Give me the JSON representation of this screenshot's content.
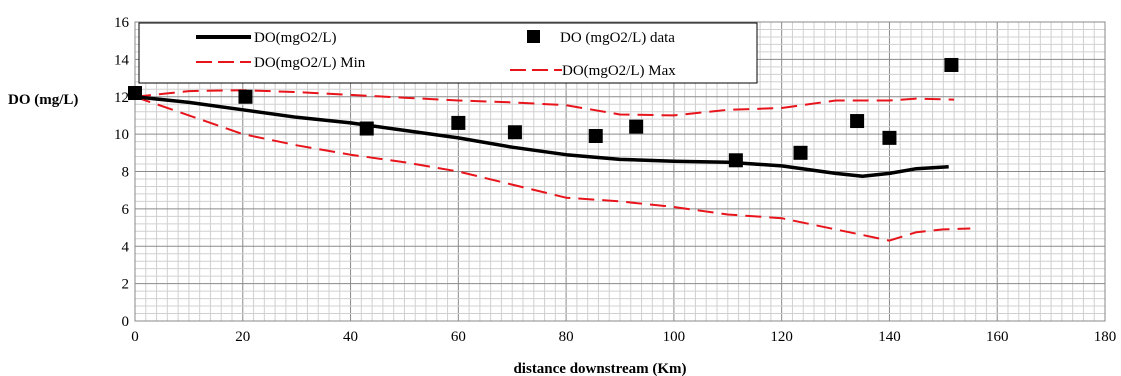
{
  "chart_data": {
    "type": "line",
    "title": "",
    "xlabel": "distance downstream (Km)",
    "ylabel": "DO (mg/L)",
    "xlim": [
      0,
      180
    ],
    "ylim": [
      0,
      16
    ],
    "x_ticks": [
      0,
      20,
      40,
      60,
      80,
      100,
      120,
      140,
      160,
      180
    ],
    "y_ticks": [
      0,
      2,
      4,
      6,
      8,
      10,
      12,
      14,
      16
    ],
    "grid": true,
    "legend_position": "top-left",
    "series": [
      {
        "name": "DO(mgO2/L)",
        "kind": "line",
        "style": "solid",
        "color": "#000000",
        "points": [
          [
            0,
            12.0
          ],
          [
            10,
            11.7
          ],
          [
            20,
            11.3
          ],
          [
            30,
            10.9
          ],
          [
            40,
            10.6
          ],
          [
            50,
            10.2
          ],
          [
            60,
            9.8
          ],
          [
            70,
            9.3
          ],
          [
            80,
            8.9
          ],
          [
            90,
            8.65
          ],
          [
            100,
            8.55
          ],
          [
            110,
            8.5
          ],
          [
            120,
            8.3
          ],
          [
            130,
            7.9
          ],
          [
            135,
            7.75
          ],
          [
            140,
            7.9
          ],
          [
            145,
            8.15
          ],
          [
            151,
            8.25
          ]
        ]
      },
      {
        "name": "DO (mgO2/L) data",
        "kind": "scatter",
        "marker": "square",
        "color": "#000000",
        "points": [
          [
            0,
            12.2
          ],
          [
            20.5,
            12.0
          ],
          [
            43,
            10.3
          ],
          [
            60,
            10.6
          ],
          [
            70.5,
            10.1
          ],
          [
            85.5,
            9.9
          ],
          [
            93,
            10.4
          ],
          [
            111.5,
            8.6
          ],
          [
            123.5,
            9.0
          ],
          [
            134,
            10.7
          ],
          [
            140,
            9.8
          ],
          [
            151.5,
            13.7
          ]
        ]
      },
      {
        "name": "DO(mgO2/L) Min",
        "kind": "line",
        "style": "dashed",
        "color": "#e8141b",
        "points": [
          [
            0,
            12.0
          ],
          [
            10,
            11.0
          ],
          [
            20,
            10.0
          ],
          [
            30,
            9.4
          ],
          [
            40,
            8.9
          ],
          [
            50,
            8.5
          ],
          [
            60,
            8.0
          ],
          [
            70,
            7.3
          ],
          [
            80,
            6.6
          ],
          [
            90,
            6.4
          ],
          [
            100,
            6.1
          ],
          [
            110,
            5.7
          ],
          [
            120,
            5.5
          ],
          [
            130,
            4.9
          ],
          [
            135,
            4.6
          ],
          [
            140,
            4.3
          ],
          [
            145,
            4.75
          ],
          [
            150,
            4.9
          ],
          [
            155,
            4.95
          ]
        ]
      },
      {
        "name": "DO(mgO2/L) Max",
        "kind": "line",
        "style": "dashed",
        "color": "#e8141b",
        "points": [
          [
            0,
            12.0
          ],
          [
            10,
            12.3
          ],
          [
            20,
            12.35
          ],
          [
            30,
            12.25
          ],
          [
            40,
            12.1
          ],
          [
            50,
            11.95
          ],
          [
            60,
            11.8
          ],
          [
            70,
            11.7
          ],
          [
            80,
            11.55
          ],
          [
            90,
            11.05
          ],
          [
            100,
            11.0
          ],
          [
            110,
            11.3
          ],
          [
            120,
            11.4
          ],
          [
            130,
            11.8
          ],
          [
            140,
            11.8
          ],
          [
            145,
            11.9
          ],
          [
            152,
            11.85
          ]
        ]
      }
    ]
  }
}
